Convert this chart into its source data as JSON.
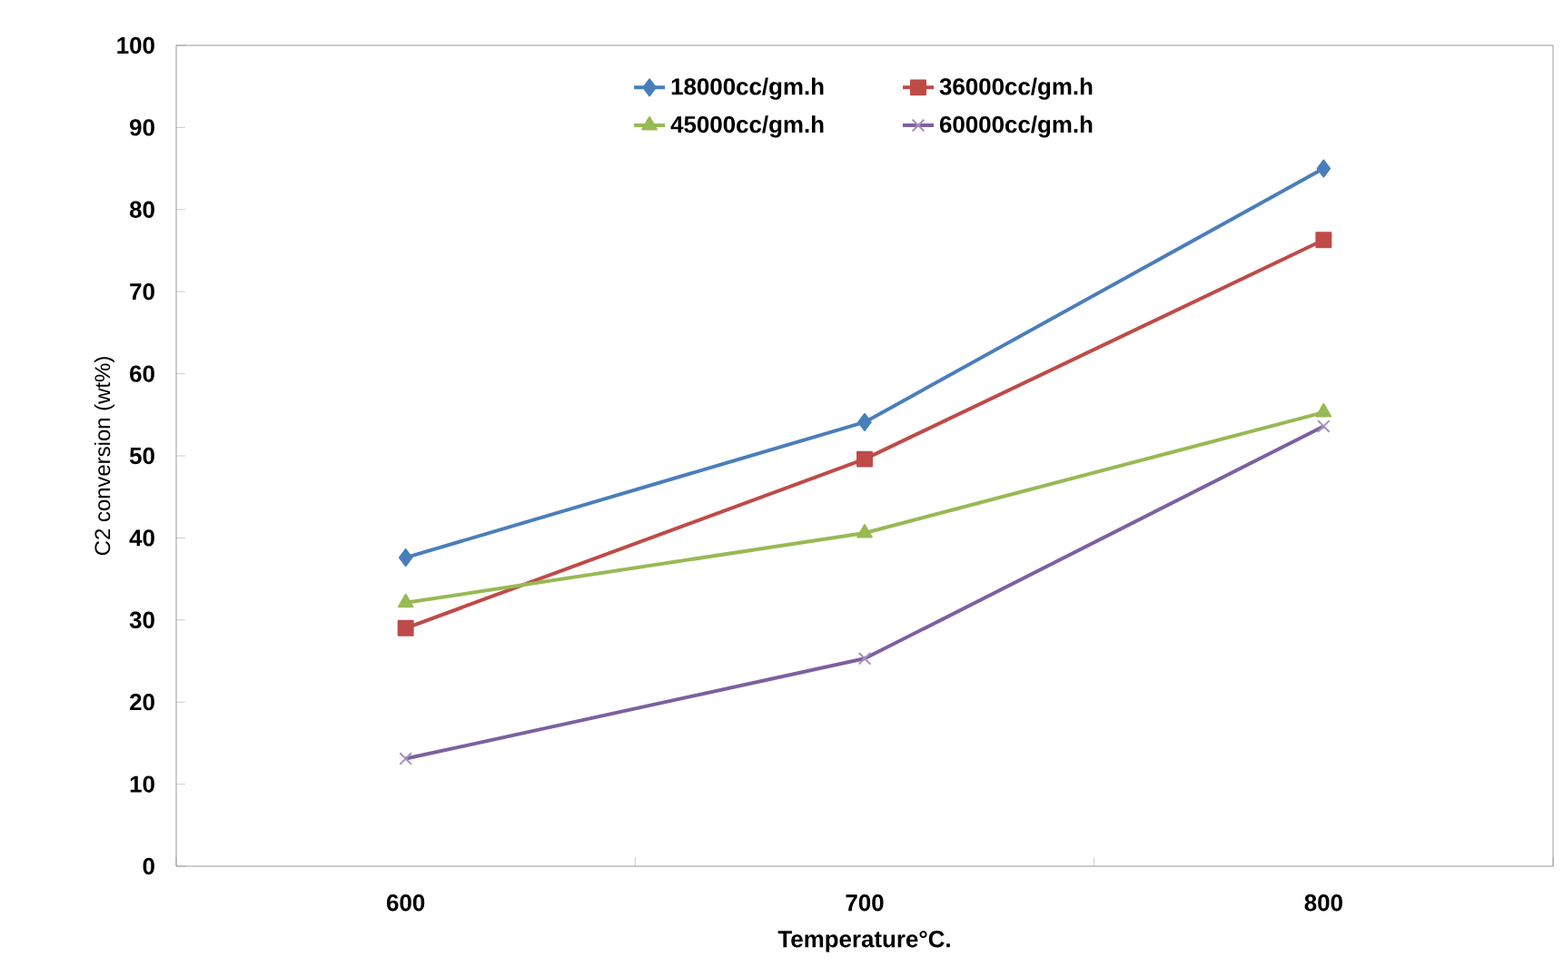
{
  "chart_data": {
    "type": "line",
    "xlabel": "Temperature°C.",
    "ylabel": "C2 conversion (wt%)",
    "categories": [
      "600",
      "700",
      "800"
    ],
    "ylim": [
      0,
      100
    ],
    "yticks": [
      0,
      10,
      20,
      30,
      40,
      50,
      60,
      70,
      80,
      90,
      100
    ],
    "grid": false,
    "legend": "top",
    "line_style": "solid",
    "series": [
      {
        "name": "18000cc/gm.h",
        "color": "#4a7ebb",
        "marker": "diamond",
        "values": [
          37.6,
          54.1,
          85.0
        ]
      },
      {
        "name": "36000cc/gm.h",
        "color": "#be4b48",
        "marker": "square",
        "values": [
          29.0,
          49.6,
          76.3
        ]
      },
      {
        "name": "45000cc/gm.h",
        "color": "#98b954",
        "marker": "triangle",
        "values": [
          32.1,
          40.6,
          55.3
        ]
      },
      {
        "name": "60000cc/gm.h",
        "color": "#7d60a0",
        "marker": "cross",
        "values": [
          13.1,
          25.3,
          53.6
        ]
      }
    ]
  }
}
